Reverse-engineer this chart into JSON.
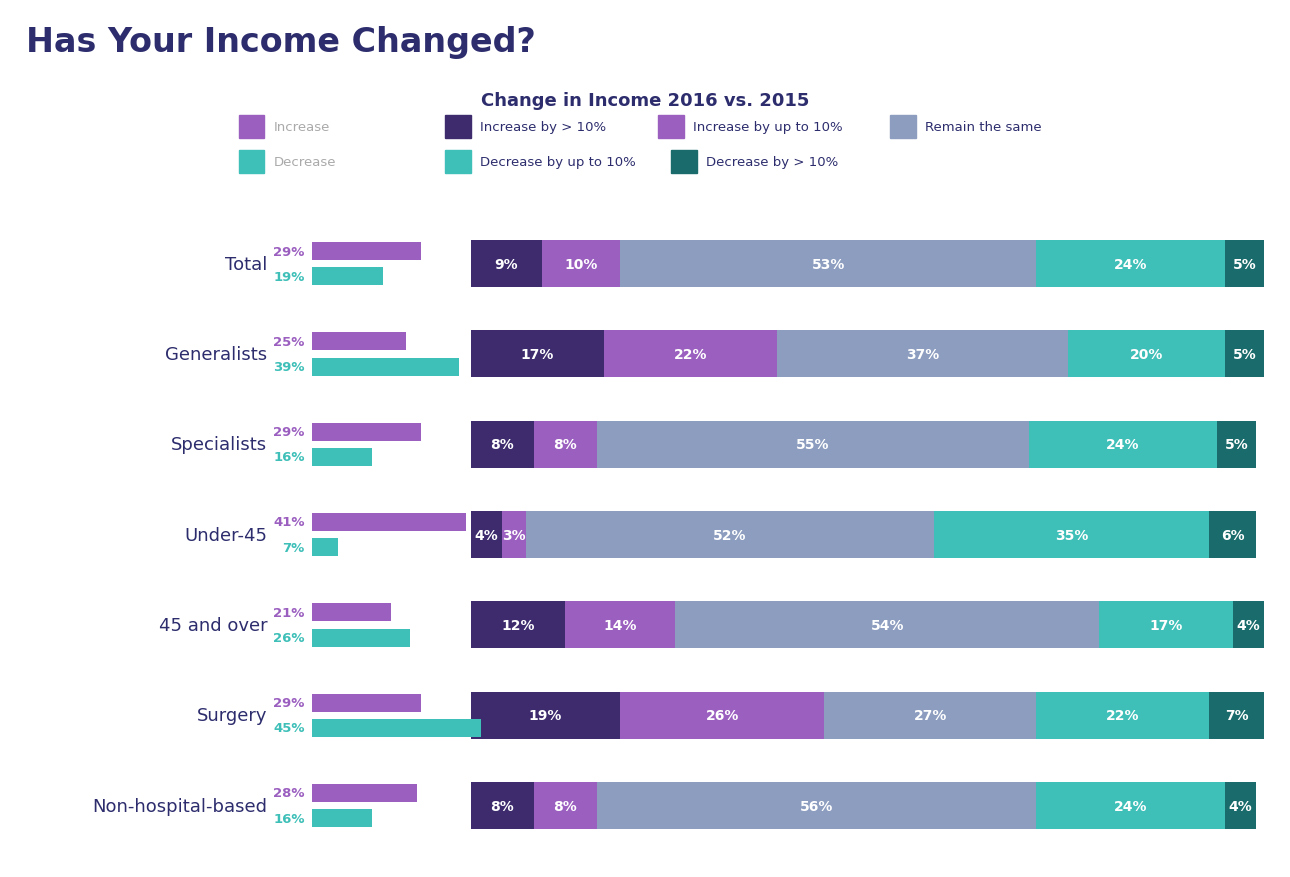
{
  "title_main": "Has Your Income Changed?",
  "title_sub": "Change in Income 2016 vs. 2015",
  "categories": [
    "Total",
    "Generalists",
    "Specialists",
    "Under-45",
    "45 and over",
    "Surgery",
    "Non-hospital-based"
  ],
  "increase_pct": [
    29,
    25,
    29,
    41,
    21,
    29,
    28
  ],
  "decrease_pct": [
    19,
    39,
    16,
    7,
    26,
    45,
    16
  ],
  "stacked_data": [
    [
      9,
      10,
      53,
      24,
      5
    ],
    [
      17,
      22,
      37,
      20,
      5
    ],
    [
      8,
      8,
      55,
      24,
      5
    ],
    [
      4,
      3,
      52,
      35,
      6
    ],
    [
      12,
      14,
      54,
      17,
      4
    ],
    [
      19,
      26,
      27,
      22,
      7
    ],
    [
      8,
      8,
      56,
      24,
      4
    ]
  ],
  "colors_stacked": [
    "#3d2b6e",
    "#9b5fc0",
    "#8c9dbf",
    "#3ebfb8",
    "#1a6b6b"
  ],
  "color_increase_bar": "#9b5fc0",
  "color_decrease_bar": "#3ebfb8",
  "color_increase_label": "#9b5fc0",
  "color_decrease_label": "#3ebfb8",
  "color_cat_label": "#2d2d6e",
  "background_color": "#ffffff",
  "legend_left_row1": {
    "label": "Increase",
    "color": "#9b5fc0"
  },
  "legend_left_row2": {
    "label": "Decrease",
    "color": "#3ebfb8"
  },
  "legend_right_row1": [
    {
      "label": "Increase by > 10%",
      "color": "#3d2b6e"
    },
    {
      "label": "Increase by up to 10%",
      "color": "#9b5fc0"
    },
    {
      "label": "Remain the same",
      "color": "#8c9dbf"
    }
  ],
  "legend_right_row2": [
    {
      "label": "Decrease by up to 10%",
      "color": "#3ebfb8"
    },
    {
      "label": "Decrease by > 10%",
      "color": "#1a6b6b"
    }
  ]
}
